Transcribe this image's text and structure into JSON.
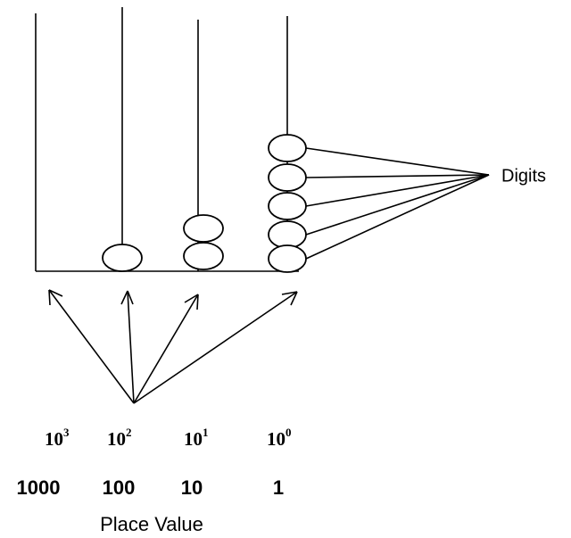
{
  "label_digits": "Digits",
  "powers": [
    {
      "base": 10,
      "exponent": 3
    },
    {
      "base": 10,
      "exponent": 2
    },
    {
      "base": 10,
      "exponent": 1
    },
    {
      "base": 10,
      "exponent": 0
    }
  ],
  "values": [
    1000,
    100,
    10,
    1
  ],
  "caption": "Place Value"
}
